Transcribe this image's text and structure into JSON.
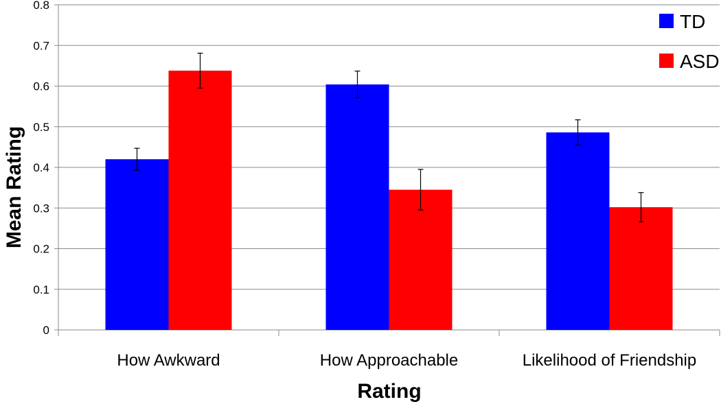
{
  "chart_data": {
    "type": "bar",
    "title": "",
    "xlabel": "Rating",
    "ylabel": "Mean Rating",
    "ylim": [
      0,
      0.8
    ],
    "yticks": [
      "0",
      "0.1",
      "0.2",
      "0.3",
      "0.4",
      "0.5",
      "0.6",
      "0.7",
      "0.8"
    ],
    "ytick_values": [
      0,
      0.1,
      0.2,
      0.3,
      0.4,
      0.5,
      0.6,
      0.7,
      0.8
    ],
    "grid": true,
    "legend_position": "top-right",
    "categories": [
      "How Awkward",
      "How Approachable",
      "Likelihood of Friendship"
    ],
    "series": [
      {
        "name": "TD",
        "color": "#0000ff",
        "values": [
          0.42,
          0.604,
          0.486
        ],
        "error": [
          0.027,
          0.033,
          0.031
        ]
      },
      {
        "name": "ASD",
        "color": "#ff0000",
        "values": [
          0.638,
          0.345,
          0.302
        ],
        "error": [
          0.043,
          0.05,
          0.036
        ]
      }
    ]
  }
}
